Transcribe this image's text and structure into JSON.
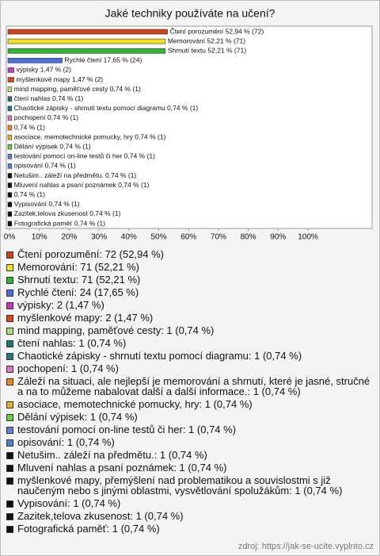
{
  "chart_data": {
    "type": "bar",
    "orientation": "horizontal",
    "title": "Jaké techniky používáte na učení?",
    "values": [
      52.94,
      52.21,
      52.21,
      17.65,
      1.47,
      1.47,
      0.74,
      0.74,
      0.74,
      0.74,
      0.74,
      0.74,
      0.74,
      0.74,
      0.74,
      0.74,
      0.74,
      0.74,
      0.74,
      0.74,
      0.74
    ],
    "value_labels": [
      "Čtení porozumění 52,94 % (72)",
      "Memorování 52,21 % (71)",
      "Shrnutí textu 52,21 % (71)",
      "Rychlé čtení 17,65 % (24)",
      "výpisky 1,47 % (2)",
      "myšlenkové mapy 1,47 % (2)",
      "mind mapping, paměťové cesty 0,74 % (1)",
      "čtení nahlas 0,74 % (1)",
      "Chaotické zápisky - shrnutí textu pomocí diagramu 0,74 % (1)",
      "pochopení 0,74 % (1)",
      "0,74 % (1)",
      "asociace, memotechnické pomucky, hry 0,74 % (1)",
      "Dělání výpisek 0,74 % (1)",
      "testování pomocí on-line testů či her 0,74 % (1)",
      "opisování 0,74 % (1)",
      "Netušim.. záleží na předmětu. 0,74 % (1)",
      "Mluvení nahlas a psaní poznámek 0,74 % (1)",
      "0,74 % (1)",
      "Vypisování 0,74 % (1)",
      "Zazitek,telova zkusenost 0,74 % (1)",
      "Fotografická paměť 0,74 % (1)"
    ],
    "legend_labels": [
      "Čtení porozumění: 72 (52,94 %)",
      "Memorování: 71 (52,21 %)",
      "Shrnutí textu: 71 (52,21 %)",
      "Rychlé čtení: 24 (17,65 %)",
      "výpisky: 2 (1,47 %)",
      "myšlenkové mapy: 2 (1,47 %)",
      "mind mapping, paměťové cesty: 1 (0,74 %)",
      "čtení nahlas: 1 (0,74 %)",
      "Chaotické zápisky - shrnutí textu pomocí diagramu: 1 (0,74 %)",
      "pochopení: 1 (0,74 %)",
      "Záleží na situaci, ale nejlepší je memorování a shrnutí, které je jasné, stručné a na to můžeme nabalovat další a další informace.: 1 (0,74 %)",
      "asociace, memotechnické pomucky, hry: 1 (0,74 %)",
      "Dělání výpisek: 1 (0,74 %)",
      "testování pomocí on-line testů či her: 1 (0,74 %)",
      "opisování: 1 (0,74 %)",
      "Netušim.. záleží na předmětu.: 1 (0,74 %)",
      "Mluvení nahlas a psaní poznámek: 1 (0,74 %)",
      "myšlenkové mapy, přemýšlení nad problematikou a souvislostmi s již naučeným nebo s jinými oblastmi, vysvětlování spolužákům: 1 (0,74 %)",
      "Vypisování: 1 (0,74 %)",
      "Zazitek,telova zkusenost: 1 (0,74 %)",
      "Fotografická paměť: 1 (0,74 %)"
    ],
    "colors": [
      "#d2401e",
      "#f2e21c",
      "#2fb52f",
      "#4a6ee0",
      "#c438c4",
      "#e0441e",
      "#b4e07a",
      "#1f7a64",
      "#217a80",
      "#d27cc6",
      "#f0841e",
      "#e0b424",
      "#62d244",
      "#5f7fe2",
      "#4f7fd0",
      "#111111",
      "#111111",
      "#111111",
      "#111111",
      "#111111",
      "#111111"
    ],
    "xlim": [
      0,
      100
    ],
    "xticks": [
      {
        "value": 0,
        "label": "0%"
      },
      {
        "value": 10,
        "label": "10%"
      },
      {
        "value": 20,
        "label": "20%"
      },
      {
        "value": 30,
        "label": "30%"
      },
      {
        "value": 40,
        "label": "40%"
      },
      {
        "value": 50,
        "label": "50%"
      },
      {
        "value": 60,
        "label": "60%"
      },
      {
        "value": 70,
        "label": "70%"
      },
      {
        "value": 80,
        "label": "80%"
      },
      {
        "value": 90,
        "label": "90%"
      },
      {
        "value": 100,
        "label": "100%"
      }
    ],
    "source": "zdroj: https://jak-se-ucite.vyplnto.cz"
  }
}
